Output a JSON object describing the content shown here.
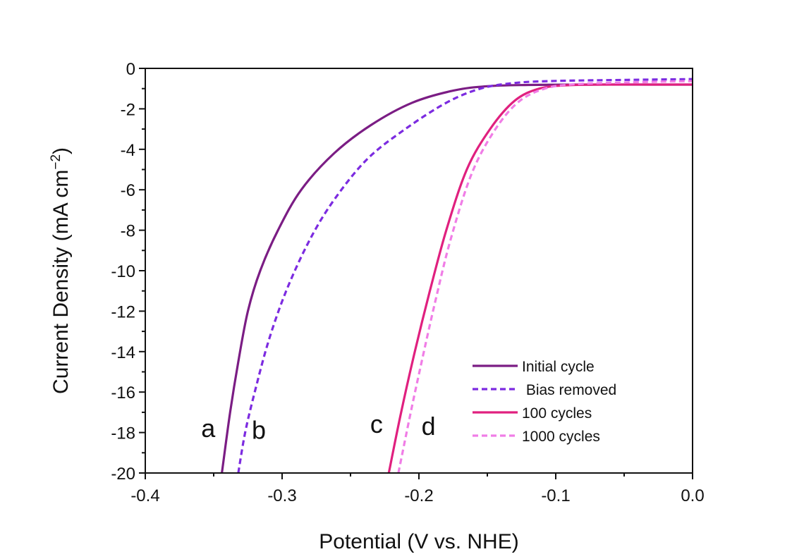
{
  "chart_data": {
    "type": "line",
    "xlabel": "Potential (V vs. NHE)",
    "ylabel": "Current Density (mA cm",
    "ylabel_sup": "−2",
    "ylabel_close": ")",
    "xlim": [
      -0.4,
      0.0
    ],
    "ylim": [
      -20,
      0
    ],
    "xticks": [
      -0.4,
      -0.3,
      -0.2,
      -0.1,
      0.0
    ],
    "xtick_labels": [
      "-0.4",
      "-0.3",
      "-0.2",
      "-0.1",
      "0.0"
    ],
    "yticks": [
      0,
      -2,
      -4,
      -6,
      -8,
      -10,
      -12,
      -14,
      -16,
      -18,
      -20
    ],
    "ytick_labels": [
      "0",
      "-2",
      "-4",
      "-6",
      "-8",
      "-10",
      "-12",
      "-14",
      "-16",
      "-18",
      "-20"
    ],
    "grid": false,
    "legend_position": "bottom-right",
    "series": [
      {
        "name": "Initial cycle",
        "color": "#7B1D84",
        "dash": "solid",
        "curve_label": "a",
        "points": [
          [
            -0.344,
            -20
          ],
          [
            -0.338,
            -17
          ],
          [
            -0.332,
            -14.5
          ],
          [
            -0.325,
            -12
          ],
          [
            -0.316,
            -10
          ],
          [
            -0.303,
            -8
          ],
          [
            -0.286,
            -6
          ],
          [
            -0.262,
            -4.2
          ],
          [
            -0.235,
            -2.8
          ],
          [
            -0.205,
            -1.7
          ],
          [
            -0.175,
            -1.1
          ],
          [
            -0.15,
            -0.88
          ],
          [
            -0.12,
            -0.82
          ],
          [
            -0.08,
            -0.8
          ],
          [
            -0.04,
            -0.8
          ],
          [
            0.0,
            -0.8
          ]
        ]
      },
      {
        "name": " Bias removed",
        "color": "#7C2BE0",
        "dash": "dashed",
        "curve_label": "b",
        "points": [
          [
            -0.332,
            -20
          ],
          [
            -0.327,
            -18
          ],
          [
            -0.32,
            -16
          ],
          [
            -0.31,
            -13.5
          ],
          [
            -0.297,
            -11
          ],
          [
            -0.28,
            -8.5
          ],
          [
            -0.262,
            -6.5
          ],
          [
            -0.238,
            -4.5
          ],
          [
            -0.21,
            -3
          ],
          [
            -0.18,
            -1.7
          ],
          [
            -0.155,
            -1.0
          ],
          [
            -0.13,
            -0.72
          ],
          [
            -0.1,
            -0.62
          ],
          [
            -0.05,
            -0.57
          ],
          [
            0.0,
            -0.53
          ]
        ]
      },
      {
        "name": "100 cycles",
        "color": "#E0207F",
        "dash": "solid",
        "curve_label": "c",
        "points": [
          [
            -0.222,
            -20
          ],
          [
            -0.213,
            -17
          ],
          [
            -0.203,
            -14
          ],
          [
            -0.192,
            -11
          ],
          [
            -0.18,
            -8
          ],
          [
            -0.165,
            -5
          ],
          [
            -0.148,
            -3
          ],
          [
            -0.13,
            -1.6
          ],
          [
            -0.112,
            -1.0
          ],
          [
            -0.09,
            -0.83
          ],
          [
            -0.06,
            -0.8
          ],
          [
            -0.03,
            -0.8
          ],
          [
            0.0,
            -0.8
          ]
        ]
      },
      {
        "name": "1000 cycles",
        "color": "#F07DE6",
        "dash": "dashed",
        "curve_label": "d",
        "points": [
          [
            -0.215,
            -20
          ],
          [
            -0.206,
            -17
          ],
          [
            -0.198,
            -14.5
          ],
          [
            -0.188,
            -11.5
          ],
          [
            -0.177,
            -8.5
          ],
          [
            -0.162,
            -5.3
          ],
          [
            -0.146,
            -3.2
          ],
          [
            -0.128,
            -1.7
          ],
          [
            -0.108,
            -1.0
          ],
          [
            -0.085,
            -0.78
          ],
          [
            -0.05,
            -0.7
          ],
          [
            -0.02,
            -0.65
          ],
          [
            0.0,
            -0.63
          ]
        ]
      }
    ],
    "curve_labels": [
      {
        "text": "a",
        "x": -0.354,
        "y": -17.8
      },
      {
        "text": "b",
        "x": -0.317,
        "y": -17.9
      },
      {
        "text": "c",
        "x": -0.231,
        "y": -17.6
      },
      {
        "text": "d",
        "x": -0.193,
        "y": -17.7
      }
    ]
  }
}
